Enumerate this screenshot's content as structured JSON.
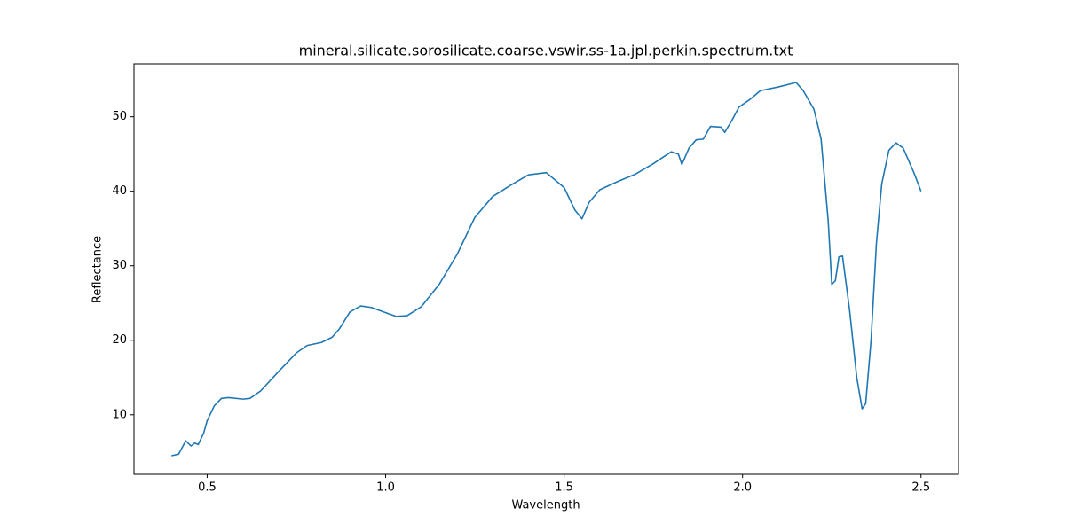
{
  "chart_data": {
    "type": "line",
    "title": "mineral.silicate.sorosilicate.coarse.vswir.ss-1a.jpl.perkin.spectrum.txt",
    "x_label": "Wavelength",
    "y_label": "Reflectance",
    "xlim": [
      0.295,
      2.605
    ],
    "ylim": [
      2.0,
      57.1
    ],
    "xticks": [
      0.5,
      {
        "value": 1.0,
        "label": "1.0"
      },
      1.5,
      {
        "value": 2.0,
        "label": "2.0"
      },
      2.5
    ],
    "yticks": [
      10,
      20,
      30,
      40,
      50
    ],
    "grid": false,
    "series": [
      {
        "color": "#1f77b4",
        "x": [
          0.4,
          0.42,
          0.44,
          0.455,
          0.465,
          0.475,
          0.49,
          0.5,
          0.52,
          0.54,
          0.56,
          0.6,
          0.62,
          0.65,
          0.7,
          0.75,
          0.78,
          0.82,
          0.85,
          0.87,
          0.9,
          0.93,
          0.96,
          1.0,
          1.03,
          1.06,
          1.1,
          1.15,
          1.2,
          1.25,
          1.3,
          1.35,
          1.4,
          1.45,
          1.5,
          1.53,
          1.55,
          1.57,
          1.6,
          1.65,
          1.7,
          1.75,
          1.8,
          1.82,
          1.83,
          1.85,
          1.87,
          1.89,
          1.91,
          1.94,
          1.95,
          1.97,
          1.99,
          2.02,
          2.05,
          2.1,
          2.15,
          2.17,
          2.2,
          2.22,
          2.24,
          2.25,
          2.26,
          2.27,
          2.28,
          2.3,
          2.32,
          2.335,
          2.345,
          2.36,
          2.375,
          2.39,
          2.41,
          2.43,
          2.45,
          2.48,
          2.5
        ],
        "values": [
          4.5,
          4.7,
          6.5,
          5.8,
          6.2,
          6.0,
          7.5,
          9.2,
          11.2,
          12.2,
          12.3,
          12.1,
          12.2,
          13.2,
          15.8,
          18.3,
          19.3,
          19.7,
          20.4,
          21.5,
          23.8,
          24.6,
          24.4,
          23.7,
          23.2,
          23.3,
          24.5,
          27.5,
          31.5,
          36.5,
          39.3,
          40.8,
          42.2,
          42.5,
          40.5,
          37.5,
          36.3,
          38.5,
          40.2,
          41.3,
          42.3,
          43.7,
          45.3,
          45.0,
          43.6,
          45.8,
          46.9,
          47.0,
          48.7,
          48.6,
          47.9,
          49.5,
          51.3,
          52.3,
          53.5,
          54.0,
          54.6,
          53.5,
          51.0,
          47.0,
          36.0,
          27.5,
          28.0,
          31.2,
          31.3,
          24.0,
          15.0,
          10.8,
          11.5,
          20.0,
          33.0,
          41.0,
          45.5,
          46.5,
          45.8,
          42.5,
          40.0
        ]
      }
    ]
  }
}
